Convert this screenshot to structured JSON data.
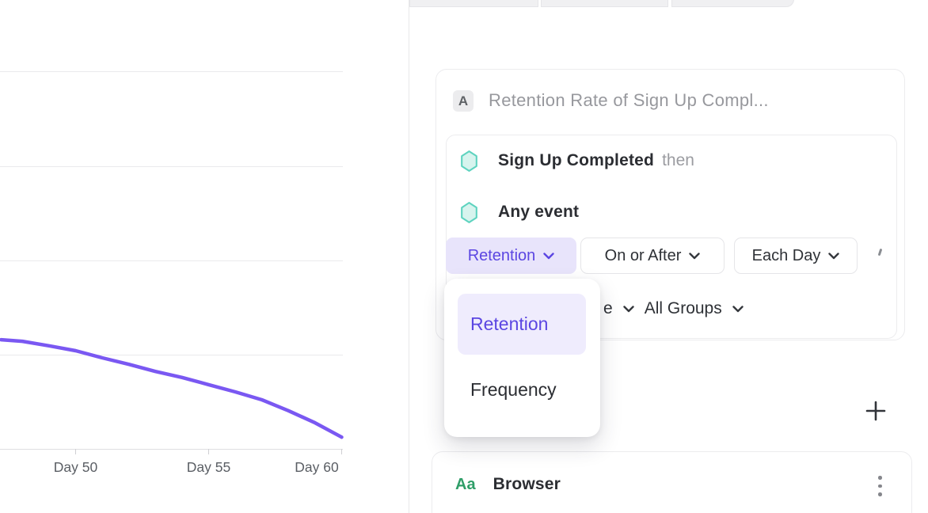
{
  "chart_data": {
    "type": "line",
    "title": "",
    "xlabel": "",
    "ylabel": "",
    "x_tick_labels": [
      "Day 50",
      "Day 55",
      "Day 60"
    ],
    "x_tick_days": [
      50,
      55,
      60
    ],
    "y_axis_ticks_visible": false,
    "grid": "horizontal",
    "series": [
      {
        "name": "retention",
        "color": "#7a58f2",
        "x_days": [
          47.2,
          48,
          49,
          50,
          51,
          52,
          53,
          54,
          55,
          56,
          57,
          58,
          59,
          60
        ],
        "y_fraction_of_plot": [
          0.289,
          0.285,
          0.273,
          0.26,
          0.241,
          0.224,
          0.205,
          0.189,
          0.17,
          0.151,
          0.13,
          0.101,
          0.069,
          0.031
        ]
      }
    ]
  },
  "metric_card": {
    "badge": "A",
    "title_placeholder": "Retention Rate of Sign Up Compl...",
    "events": [
      {
        "name": "Sign Up Completed",
        "suffix": "then"
      },
      {
        "name": "Any event",
        "suffix": ""
      }
    ],
    "controls": {
      "metric_type": "Retention",
      "timing": "On or After",
      "interval": "Each Day"
    },
    "filter_row": {
      "clipped_text": "e",
      "group_by": "All Groups"
    }
  },
  "dropdown_menu": {
    "items": [
      {
        "label": "Retention",
        "selected": true
      },
      {
        "label": "Frequency",
        "selected": false
      }
    ]
  },
  "actions": {
    "add_button_glyph": "+"
  },
  "segment_card": {
    "type_badge": "Aa",
    "name": "Browser"
  },
  "colors": {
    "accent_purple": "#5b46e2",
    "accent_purple_bg": "#e8e4fb",
    "menu_selected_bg": "#efecfd",
    "line_purple": "#7a58f2",
    "hexagon_fill": "#d7f4ee",
    "hexagon_border": "#5ed3bf",
    "type_badge_green": "#2f9e68",
    "muted_text": "#97989d",
    "dark_text": "#2d2f34"
  }
}
